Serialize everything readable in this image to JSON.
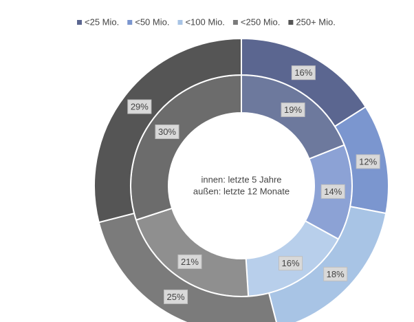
{
  "chart_data": {
    "type": "donut",
    "categories": [
      "<25 Mio.",
      "<50 Mio.",
      "<100 Mio.",
      "<250 Mio.",
      "250+ Mio."
    ],
    "series": [
      {
        "colors": [
          "#6d799d",
          "#8ca2d5",
          "#b8cfeb",
          "#8f8f8f",
          "#6c6c6c"
        ],
        "values": [
          19,
          14,
          16,
          21,
          30
        ],
        "value_labels": [
          "19%",
          "14%",
          "16%",
          "21%",
          "30%"
        ]
      },
      {
        "colors": [
          "#5b6690",
          "#7b96cf",
          "#a8c4e5",
          "#7b7b7b",
          "#555555"
        ],
        "values": [
          16,
          12,
          18,
          25,
          29
        ],
        "value_labels": [
          "16%",
          "12%",
          "18%",
          "25%",
          "29%"
        ]
      }
    ],
    "annotations": [
      "innen: letzte 5 Jahre",
      "außen: letzte 12 Monate"
    ],
    "legend": "top"
  }
}
